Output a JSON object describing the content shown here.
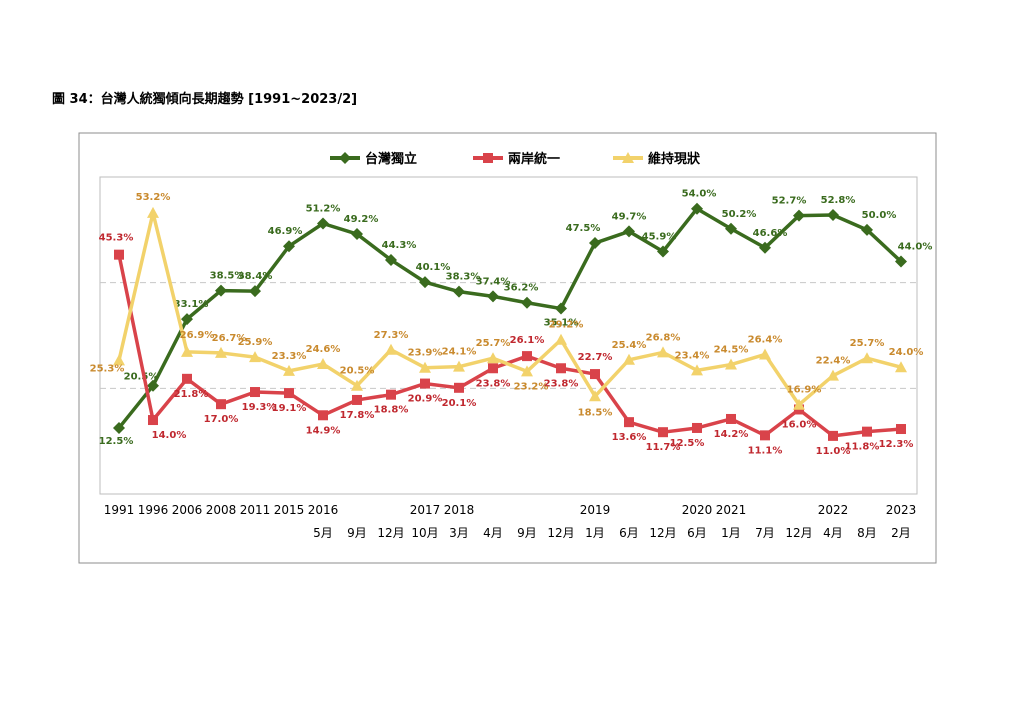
{
  "figure_title": "圖 34：台灣人統獨傾向長期趨勢 [1991~2023/2]",
  "chart_data": {
    "type": "line",
    "title": "",
    "xlabel": "",
    "ylabel": "",
    "ylim": [
      0,
      60
    ],
    "grid": "dashed horizontal lines at 20% and 40%",
    "legend_position": "top-center",
    "categories": [
      {
        "year": "1991",
        "month": ""
      },
      {
        "year": "1996",
        "month": ""
      },
      {
        "year": "2006",
        "month": ""
      },
      {
        "year": "2008",
        "month": ""
      },
      {
        "year": "2011",
        "month": ""
      },
      {
        "year": "2015",
        "month": ""
      },
      {
        "year": "2016",
        "month": "5月"
      },
      {
        "year": "",
        "month": "9月"
      },
      {
        "year": "",
        "month": "12月"
      },
      {
        "year": "2017",
        "month": "10月"
      },
      {
        "year": "2018",
        "month": "3月"
      },
      {
        "year": "",
        "month": "4月"
      },
      {
        "year": "",
        "month": "9月"
      },
      {
        "year": "",
        "month": "12月"
      },
      {
        "year": "2019",
        "month": "1月"
      },
      {
        "year": "",
        "month": "6月"
      },
      {
        "year": "",
        "month": "12月"
      },
      {
        "year": "2020",
        "month": "6月"
      },
      {
        "year": "2021",
        "month": "1月"
      },
      {
        "year": "",
        "month": "7月"
      },
      {
        "year": "",
        "month": "12月"
      },
      {
        "year": "2022",
        "month": "4月"
      },
      {
        "year": "",
        "month": "8月"
      },
      {
        "year": "2023",
        "month": "2月"
      }
    ],
    "series": [
      {
        "name": "台灣獨立",
        "color": "#3a6b1e",
        "label_color": "#3a6b1e",
        "marker": "diamond",
        "values": [
          12.5,
          20.5,
          33.1,
          38.5,
          38.4,
          46.9,
          51.2,
          49.2,
          44.3,
          40.1,
          38.3,
          37.4,
          36.2,
          35.1,
          47.5,
          49.7,
          45.9,
          54.0,
          50.2,
          46.6,
          52.7,
          52.8,
          50.0,
          44.0
        ],
        "labels": [
          "12.5%",
          "20.5%",
          "33.1%",
          "38.5%",
          "38.4%",
          "46.9%",
          "51.2%",
          "49.2%",
          "44.3%",
          "40.1%",
          "38.3%",
          "37.4%",
          "36.2%",
          "35.1%",
          "47.5%",
          "49.7%",
          "45.9%",
          "54.0%",
          "50.2%",
          "46.6%",
          "52.7%",
          "52.8%",
          "50.0%",
          "44.0%"
        ]
      },
      {
        "name": "兩岸統一",
        "color": "#d9434a",
        "label_color": "#c0282f",
        "marker": "square",
        "values": [
          45.3,
          14.0,
          21.8,
          17.0,
          19.3,
          19.1,
          14.9,
          17.8,
          18.8,
          20.9,
          20.1,
          23.8,
          26.1,
          23.8,
          22.7,
          13.6,
          11.7,
          12.5,
          14.2,
          11.1,
          16.0,
          11.0,
          11.8,
          12.3
        ],
        "labels": [
          "45.3%",
          "14.0%",
          "21.8%",
          "17.0%",
          "19.3%",
          "19.1%",
          "14.9%",
          "17.8%",
          "18.8%",
          "20.9%",
          "20.1%",
          "23.8%",
          "26.1%",
          "23.8%",
          "22.7%",
          "13.6%",
          "11.7%",
          "12.5%",
          "14.2%",
          "11.1%",
          "16.0%",
          "11.0%",
          "11.8%",
          "12.3%"
        ]
      },
      {
        "name": "維持現狀",
        "color": "#f2d26b",
        "label_color": "#c98a2e",
        "marker": "triangle",
        "values": [
          25.3,
          53.2,
          26.9,
          26.7,
          25.9,
          23.3,
          24.6,
          20.5,
          27.3,
          23.9,
          24.1,
          25.7,
          23.2,
          29.2,
          18.5,
          25.4,
          26.8,
          23.4,
          24.5,
          26.4,
          16.9,
          22.4,
          25.7,
          24.0
        ],
        "labels": [
          "25.3%",
          "53.2%",
          "26.9%",
          "26.7%",
          "25.9%",
          "23.3%",
          "24.6%",
          "20.5%",
          "27.3%",
          "23.9%",
          "24.1%",
          "25.7%",
          "23.2%",
          "29.2%",
          "18.5%",
          "25.4%",
          "26.8%",
          "23.4%",
          "24.5%",
          "26.4%",
          "16.9%",
          "22.4%",
          "25.7%",
          "24.0%"
        ]
      }
    ]
  }
}
